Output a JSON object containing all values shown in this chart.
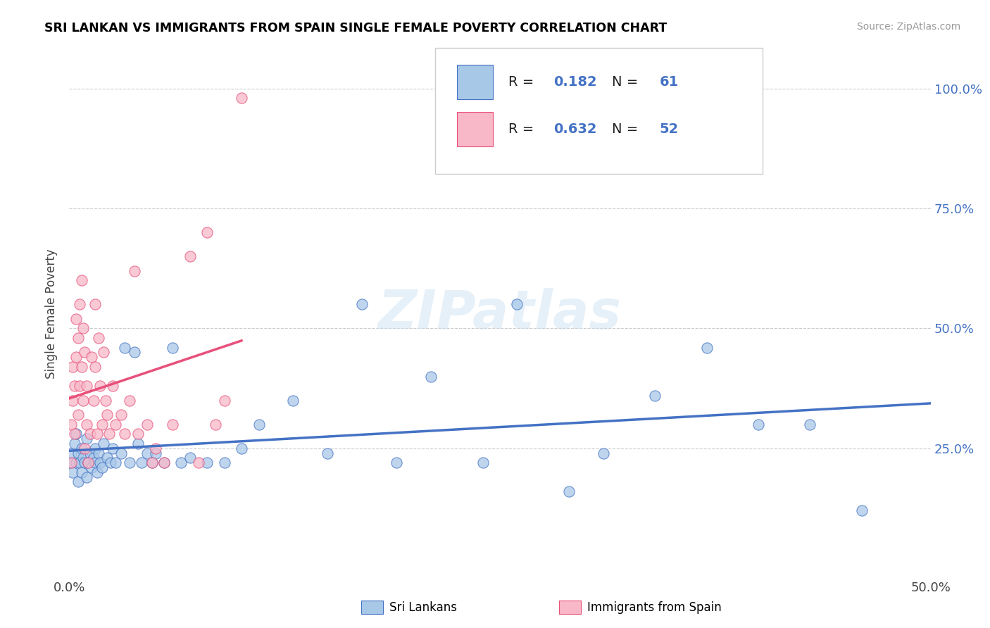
{
  "title": "SRI LANKAN VS IMMIGRANTS FROM SPAIN SINGLE FEMALE POVERTY CORRELATION CHART",
  "source": "Source: ZipAtlas.com",
  "ylabel": "Single Female Poverty",
  "xlim": [
    0.0,
    0.5
  ],
  "ylim": [
    -0.02,
    1.08
  ],
  "ytick_labels": [
    "25.0%",
    "50.0%",
    "75.0%",
    "100.0%"
  ],
  "ytick_positions": [
    0.25,
    0.5,
    0.75,
    1.0
  ],
  "xtick_positions": [
    0.0,
    0.5
  ],
  "xtick_labels": [
    "0.0%",
    "50.0%"
  ],
  "legend_sri_r": "0.182",
  "legend_sri_n": "61",
  "legend_spain_r": "0.632",
  "legend_spain_n": "52",
  "color_sri": "#a8c8e8",
  "color_spain": "#f8b8c8",
  "color_sri_line": "#4472c4",
  "color_spain_line": "#e8507a",
  "watermark": "ZIPatlas",
  "sri_x": [
    0.001,
    0.001,
    0.002,
    0.003,
    0.004,
    0.004,
    0.005,
    0.005,
    0.006,
    0.007,
    0.007,
    0.008,
    0.009,
    0.01,
    0.01,
    0.011,
    0.012,
    0.013,
    0.014,
    0.015,
    0.015,
    0.016,
    0.017,
    0.018,
    0.019,
    0.02,
    0.022,
    0.024,
    0.025,
    0.027,
    0.03,
    0.032,
    0.035,
    0.038,
    0.04,
    0.042,
    0.045,
    0.048,
    0.05,
    0.055,
    0.06,
    0.065,
    0.07,
    0.08,
    0.09,
    0.1,
    0.11,
    0.13,
    0.15,
    0.17,
    0.19,
    0.21,
    0.24,
    0.26,
    0.29,
    0.31,
    0.34,
    0.37,
    0.4,
    0.43,
    0.46
  ],
  "sri_y": [
    0.22,
    0.24,
    0.2,
    0.26,
    0.22,
    0.28,
    0.18,
    0.24,
    0.22,
    0.25,
    0.2,
    0.23,
    0.22,
    0.19,
    0.27,
    0.22,
    0.24,
    0.21,
    0.23,
    0.22,
    0.25,
    0.2,
    0.24,
    0.22,
    0.21,
    0.26,
    0.23,
    0.22,
    0.25,
    0.22,
    0.24,
    0.46,
    0.22,
    0.45,
    0.26,
    0.22,
    0.24,
    0.22,
    0.24,
    0.22,
    0.46,
    0.22,
    0.23,
    0.22,
    0.22,
    0.25,
    0.3,
    0.35,
    0.24,
    0.55,
    0.22,
    0.4,
    0.22,
    0.55,
    0.16,
    0.24,
    0.36,
    0.46,
    0.3,
    0.3,
    0.12
  ],
  "spain_x": [
    0.001,
    0.001,
    0.002,
    0.002,
    0.003,
    0.003,
    0.004,
    0.004,
    0.005,
    0.005,
    0.006,
    0.006,
    0.007,
    0.007,
    0.008,
    0.008,
    0.009,
    0.009,
    0.01,
    0.01,
    0.011,
    0.012,
    0.013,
    0.014,
    0.015,
    0.015,
    0.016,
    0.017,
    0.018,
    0.019,
    0.02,
    0.021,
    0.022,
    0.023,
    0.025,
    0.027,
    0.03,
    0.032,
    0.035,
    0.038,
    0.04,
    0.045,
    0.048,
    0.05,
    0.055,
    0.06,
    0.07,
    0.075,
    0.08,
    0.085,
    0.09,
    0.1
  ],
  "spain_y": [
    0.22,
    0.3,
    0.35,
    0.42,
    0.28,
    0.38,
    0.44,
    0.52,
    0.32,
    0.48,
    0.38,
    0.55,
    0.42,
    0.6,
    0.35,
    0.5,
    0.25,
    0.45,
    0.3,
    0.38,
    0.22,
    0.28,
    0.44,
    0.35,
    0.42,
    0.55,
    0.28,
    0.48,
    0.38,
    0.3,
    0.45,
    0.35,
    0.32,
    0.28,
    0.38,
    0.3,
    0.32,
    0.28,
    0.35,
    0.62,
    0.28,
    0.3,
    0.22,
    0.25,
    0.22,
    0.3,
    0.65,
    0.22,
    0.7,
    0.3,
    0.35,
    0.98
  ]
}
